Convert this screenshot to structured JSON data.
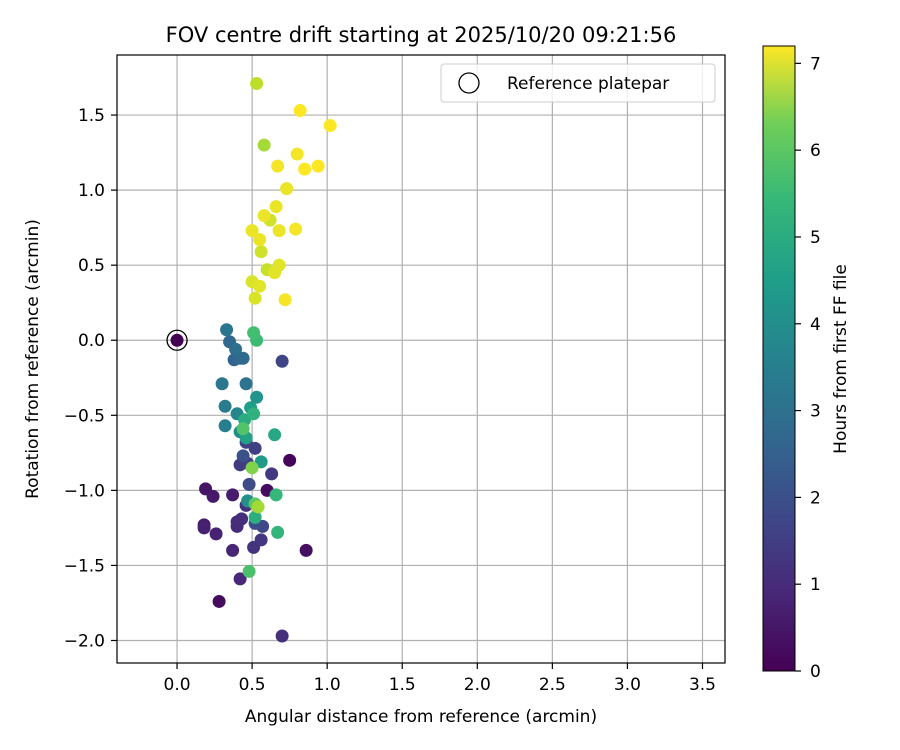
{
  "chart_data": {
    "type": "scatter",
    "title": "FOV centre drift starting at 2025/10/20 09:21:56",
    "xlabel": "Angular distance from reference (arcmin)",
    "ylabel": "Rotation from reference (arcmin)",
    "xlim": [
      -0.4,
      3.65
    ],
    "ylim": [
      -2.15,
      1.9
    ],
    "xticks": [
      0.0,
      0.5,
      1.0,
      1.5,
      2.0,
      2.5,
      3.0,
      3.5
    ],
    "xtick_labels": [
      "0.0",
      "0.5",
      "1.0",
      "1.5",
      "2.0",
      "2.5",
      "3.0",
      "3.5"
    ],
    "yticks": [
      -2.0,
      -1.5,
      -1.0,
      -0.5,
      0.0,
      0.5,
      1.0,
      1.5
    ],
    "ytick_labels": [
      "−2.0",
      "−1.5",
      "−1.0",
      "−0.5",
      "0.0",
      "0.5",
      "1.0",
      "1.5"
    ],
    "grid": true,
    "legend": {
      "position": "top-right",
      "entries": [
        "Reference platepar"
      ]
    },
    "colorbar": {
      "label": "Hours from first FF file",
      "colormap": "viridis",
      "range": [
        0,
        7.2
      ],
      "ticks": [
        0,
        1,
        2,
        3,
        4,
        5,
        6,
        7
      ],
      "tick_labels": [
        "0",
        "1",
        "2",
        "3",
        "4",
        "5",
        "6",
        "7"
      ]
    },
    "reference_point": {
      "x": 0.0,
      "y": 0.0
    },
    "points": [
      {
        "x": 0.0,
        "y": 0.0,
        "t": 0.0
      },
      {
        "x": 0.75,
        "y": -0.8,
        "t": 0.1
      },
      {
        "x": 0.28,
        "y": -1.74,
        "t": 0.2
      },
      {
        "x": 0.6,
        "y": -1.0,
        "t": 0.25
      },
      {
        "x": 0.86,
        "y": -1.4,
        "t": 0.3
      },
      {
        "x": 0.19,
        "y": -0.99,
        "t": 0.4
      },
      {
        "x": 0.24,
        "y": -1.04,
        "t": 0.5
      },
      {
        "x": 0.37,
        "y": -1.03,
        "t": 0.55
      },
      {
        "x": 0.18,
        "y": -1.23,
        "t": 0.6
      },
      {
        "x": 0.18,
        "y": -1.25,
        "t": 0.65
      },
      {
        "x": 0.26,
        "y": -1.29,
        "t": 0.7
      },
      {
        "x": 0.37,
        "y": -1.4,
        "t": 0.75
      },
      {
        "x": 0.42,
        "y": -1.59,
        "t": 0.8
      },
      {
        "x": 0.4,
        "y": -1.24,
        "t": 0.85
      },
      {
        "x": 0.4,
        "y": -1.21,
        "t": 0.9
      },
      {
        "x": 0.43,
        "y": -1.19,
        "t": 0.95
      },
      {
        "x": 0.7,
        "y": -1.97,
        "t": 1.0
      },
      {
        "x": 0.46,
        "y": -1.1,
        "t": 1.05
      },
      {
        "x": 0.51,
        "y": -1.38,
        "t": 1.1
      },
      {
        "x": 0.56,
        "y": -1.33,
        "t": 1.15
      },
      {
        "x": 0.63,
        "y": -0.89,
        "t": 1.2
      },
      {
        "x": 0.42,
        "y": -0.83,
        "t": 1.25
      },
      {
        "x": 0.47,
        "y": -0.82,
        "t": 1.3
      },
      {
        "x": 0.52,
        "y": -0.72,
        "t": 1.35
      },
      {
        "x": 0.46,
        "y": -0.68,
        "t": 1.4
      },
      {
        "x": 0.7,
        "y": -0.14,
        "t": 1.5
      },
      {
        "x": 0.57,
        "y": -1.24,
        "t": 1.55
      },
      {
        "x": 0.48,
        "y": -0.96,
        "t": 1.65
      },
      {
        "x": 0.52,
        "y": -1.22,
        "t": 1.7
      },
      {
        "x": 0.44,
        "y": -0.77,
        "t": 1.8
      },
      {
        "x": 0.38,
        "y": -0.13,
        "t": 2.3
      },
      {
        "x": 0.35,
        "y": -0.01,
        "t": 2.4
      },
      {
        "x": 0.42,
        "y": -0.12,
        "t": 2.4
      },
      {
        "x": 0.44,
        "y": -0.12,
        "t": 2.5
      },
      {
        "x": 0.39,
        "y": -0.06,
        "t": 2.6
      },
      {
        "x": 0.46,
        "y": -0.29,
        "t": 2.7
      },
      {
        "x": 0.33,
        "y": 0.07,
        "t": 2.8
      },
      {
        "x": 0.3,
        "y": -0.29,
        "t": 2.9
      },
      {
        "x": 0.32,
        "y": -0.44,
        "t": 3.0
      },
      {
        "x": 0.32,
        "y": -0.57,
        "t": 3.1
      },
      {
        "x": 0.4,
        "y": -0.49,
        "t": 3.3
      },
      {
        "x": 0.42,
        "y": -0.61,
        "t": 3.5
      },
      {
        "x": 0.47,
        "y": -1.07,
        "t": 3.6
      },
      {
        "x": 0.53,
        "y": -0.38,
        "t": 3.7
      },
      {
        "x": 0.56,
        "y": -0.81,
        "t": 3.9
      },
      {
        "x": 0.49,
        "y": -0.45,
        "t": 4.0
      },
      {
        "x": 0.46,
        "y": -0.65,
        "t": 4.1
      },
      {
        "x": 0.65,
        "y": -0.63,
        "t": 4.3
      },
      {
        "x": 0.45,
        "y": -0.53,
        "t": 4.4
      },
      {
        "x": 0.52,
        "y": -1.18,
        "t": 4.5
      },
      {
        "x": 0.51,
        "y": -0.49,
        "t": 4.6
      },
      {
        "x": 0.67,
        "y": -1.28,
        "t": 4.7
      },
      {
        "x": 0.66,
        "y": -1.03,
        "t": 4.8
      },
      {
        "x": 0.53,
        "y": 0.0,
        "t": 4.9
      },
      {
        "x": 0.51,
        "y": 0.05,
        "t": 5.0
      },
      {
        "x": 0.48,
        "y": -1.54,
        "t": 5.1
      },
      {
        "x": 0.44,
        "y": -0.59,
        "t": 5.2
      },
      {
        "x": 0.52,
        "y": -1.09,
        "t": 5.4
      },
      {
        "x": 0.5,
        "y": -0.85,
        "t": 5.8
      },
      {
        "x": 0.54,
        "y": -1.11,
        "t": 6.2
      },
      {
        "x": 0.58,
        "y": 1.3,
        "t": 6.2
      },
      {
        "x": 0.53,
        "y": 1.71,
        "t": 6.5
      },
      {
        "x": 0.6,
        "y": 0.47,
        "t": 6.6
      },
      {
        "x": 0.56,
        "y": 0.59,
        "t": 6.7
      },
      {
        "x": 0.62,
        "y": 0.8,
        "t": 6.7
      },
      {
        "x": 0.5,
        "y": 0.39,
        "t": 6.8
      },
      {
        "x": 0.52,
        "y": 0.28,
        "t": 6.8
      },
      {
        "x": 0.55,
        "y": 0.36,
        "t": 6.9
      },
      {
        "x": 0.65,
        "y": 0.45,
        "t": 6.9
      },
      {
        "x": 0.68,
        "y": 0.5,
        "t": 6.9
      },
      {
        "x": 0.5,
        "y": 0.73,
        "t": 7.0
      },
      {
        "x": 0.55,
        "y": 0.67,
        "t": 7.0
      },
      {
        "x": 0.58,
        "y": 0.83,
        "t": 7.0
      },
      {
        "x": 0.66,
        "y": 0.89,
        "t": 7.0
      },
      {
        "x": 0.68,
        "y": 0.73,
        "t": 7.0
      },
      {
        "x": 0.73,
        "y": 1.01,
        "t": 7.0
      },
      {
        "x": 0.67,
        "y": 1.16,
        "t": 7.1
      },
      {
        "x": 0.79,
        "y": 0.74,
        "t": 7.1
      },
      {
        "x": 0.72,
        "y": 0.27,
        "t": 7.1
      },
      {
        "x": 0.8,
        "y": 1.24,
        "t": 7.1
      },
      {
        "x": 0.82,
        "y": 1.53,
        "t": 7.2
      },
      {
        "x": 0.85,
        "y": 1.14,
        "t": 7.2
      },
      {
        "x": 0.94,
        "y": 1.16,
        "t": 7.2
      },
      {
        "x": 1.02,
        "y": 1.43,
        "t": 7.2
      }
    ]
  }
}
